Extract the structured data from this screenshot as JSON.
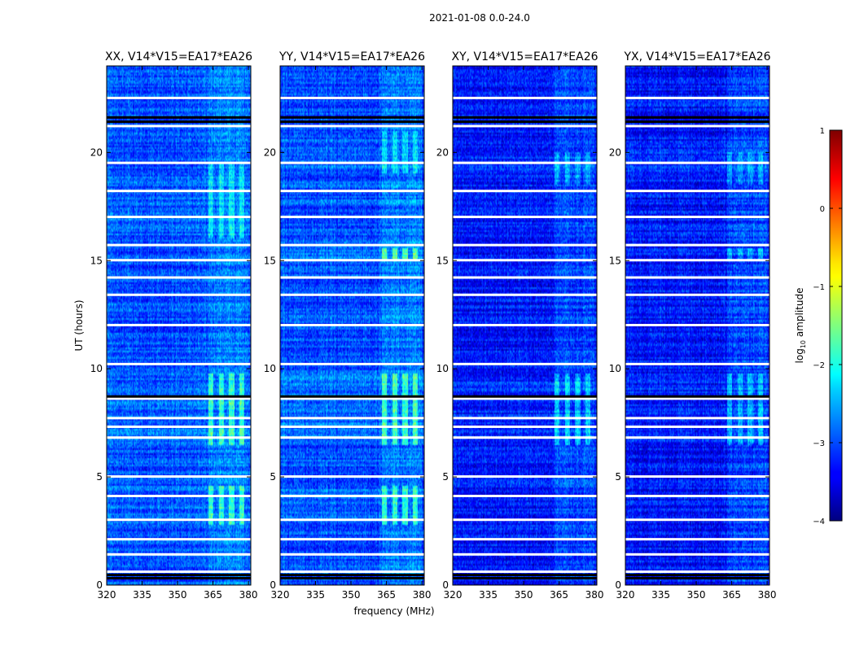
{
  "chart_data": {
    "type": "heatmap",
    "title": "2021-01-08 0.0-24.0",
    "xlabel": "frequency (MHz)",
    "ylabel": "UT (hours)",
    "xlim": [
      320,
      381
    ],
    "ylim": [
      0,
      24
    ],
    "x_ticks": [
      "320",
      "335",
      "350",
      "365",
      "380"
    ],
    "x_tick_values": [
      320,
      335,
      350,
      365,
      380
    ],
    "y_ticks": [
      "0",
      "5",
      "10",
      "15",
      "20"
    ],
    "y_tick_values": [
      0,
      5,
      10,
      15,
      20
    ],
    "rfi_band_mhz": [
      363,
      380
    ],
    "panels": [
      {
        "title": "XX, V14*V15=EA17*EA26",
        "base_level": -3.0,
        "boost": [
          [
            2.8,
            4.6,
            0.9
          ],
          [
            6.5,
            9.8,
            0.9
          ],
          [
            16.0,
            19.5,
            0.55
          ]
        ],
        "white_rows": [
          0.6,
          1.4,
          2.1,
          3.0,
          4.1,
          5.0,
          6.8,
          7.3,
          7.7,
          8.6,
          10.2,
          12.0,
          13.4,
          14.2,
          15.0,
          15.7,
          17.0,
          18.2,
          19.5,
          21.2,
          22.5
        ],
        "black_rows": [
          0.3,
          0.45,
          21.4,
          21.6,
          8.7
        ]
      },
      {
        "title": "YY, V14*V15=EA17*EA26",
        "base_level": -3.0,
        "boost": [
          [
            2.8,
            4.6,
            0.9
          ],
          [
            6.5,
            9.8,
            0.9
          ],
          [
            15.0,
            15.6,
            1.0
          ],
          [
            19.0,
            21.0,
            0.5
          ]
        ],
        "white_rows": [
          0.6,
          1.4,
          2.1,
          3.0,
          4.1,
          5.0,
          6.8,
          7.3,
          7.7,
          8.6,
          10.2,
          12.0,
          13.4,
          14.2,
          15.0,
          15.7,
          17.0,
          18.2,
          19.5,
          21.2,
          22.5
        ],
        "black_rows": [
          0.3,
          0.45,
          21.4,
          21.6,
          8.7
        ]
      },
      {
        "title": "XY, V14*V15=EA17*EA26",
        "base_level": -3.3,
        "boost": [
          [
            6.5,
            9.8,
            0.7
          ],
          [
            18.5,
            20.0,
            0.5
          ]
        ],
        "white_rows": [
          0.6,
          1.4,
          2.1,
          3.0,
          4.1,
          5.0,
          6.8,
          7.3,
          7.7,
          8.6,
          10.2,
          12.0,
          13.4,
          14.2,
          15.0,
          15.7,
          17.0,
          18.2,
          19.5,
          21.2,
          22.5
        ],
        "black_rows": [
          0.3,
          0.45,
          21.4,
          21.6,
          8.7
        ]
      },
      {
        "title": "YX, V14*V15=EA17*EA26",
        "base_level": -3.3,
        "boost": [
          [
            6.5,
            9.8,
            0.6
          ],
          [
            15.0,
            15.6,
            0.6
          ],
          [
            18.5,
            20.0,
            0.45
          ]
        ],
        "white_rows": [
          0.6,
          1.4,
          2.1,
          3.0,
          4.1,
          5.0,
          6.8,
          7.3,
          7.7,
          8.6,
          10.2,
          12.0,
          13.4,
          14.2,
          15.0,
          15.7,
          17.0,
          18.2,
          19.5,
          21.2,
          22.5
        ],
        "black_rows": [
          0.3,
          0.45,
          21.4,
          21.6,
          8.7
        ]
      }
    ],
    "colorbar": {
      "label_prefix": "log",
      "label_sub": "10",
      "label_suffix": " amplitude",
      "range": [
        -4,
        1
      ],
      "ticks": [
        "1",
        "0",
        "−1",
        "−2",
        "−3",
        "−4"
      ],
      "tick_values": [
        1,
        0,
        -1,
        -2,
        -3,
        -4
      ],
      "colormap": "jet"
    }
  }
}
